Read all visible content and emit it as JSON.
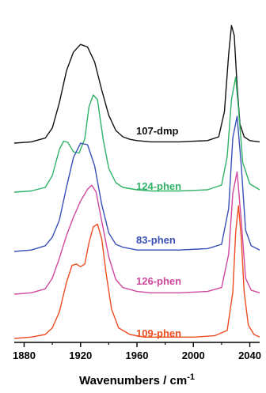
{
  "chart_data": {
    "type": "line",
    "title": "",
    "xlabel": "Wavenumbers / cm",
    "xlabel_superscript": "-1",
    "ylabel": "",
    "xlim": [
      1873,
      2047
    ],
    "xticks": [
      1880,
      1920,
      1960,
      2000,
      2040
    ],
    "y_axis_shown": false,
    "grid": false,
    "colors": {
      "107-dmp": "#111111",
      "124-phen": "#2fb266",
      "83-phen": "#3a4fb8",
      "126-phen": "#d0479e",
      "109-phen": "#ee4d21"
    },
    "series": [
      {
        "name": "107-dmp",
        "x": [
          1873,
          1885,
          1895,
          1900,
          1905,
          1910,
          1915,
          1920,
          1925,
          1930,
          1935,
          1940,
          1945,
          1950,
          1955,
          1960,
          1970,
          1980,
          1990,
          2000,
          2010,
          2018,
          2022,
          2025,
          2027,
          2029,
          2031,
          2033,
          2036,
          2040,
          2047
        ],
        "y": [
          0.0,
          0.01,
          0.04,
          0.12,
          0.32,
          0.57,
          0.72,
          0.78,
          0.76,
          0.64,
          0.42,
          0.22,
          0.1,
          0.05,
          0.03,
          0.02,
          0.01,
          0.01,
          0.01,
          0.015,
          0.02,
          0.05,
          0.25,
          0.7,
          0.93,
          0.85,
          0.45,
          0.15,
          0.05,
          0.02,
          0.01
        ]
      },
      {
        "name": "124-phen",
        "x": [
          1873,
          1885,
          1895,
          1900,
          1905,
          1908,
          1911,
          1915,
          1919,
          1923,
          1926,
          1929,
          1932,
          1936,
          1940,
          1945,
          1950,
          1960,
          1970,
          1990,
          2010,
          2020,
          2024,
          2027,
          2030,
          2032,
          2035,
          2040,
          2047
        ],
        "y": [
          0.0,
          0.01,
          0.04,
          0.14,
          0.36,
          0.43,
          0.42,
          0.34,
          0.33,
          0.45,
          0.72,
          0.82,
          0.78,
          0.45,
          0.2,
          0.08,
          0.04,
          0.02,
          0.01,
          0.01,
          0.02,
          0.06,
          0.3,
          0.78,
          0.97,
          0.7,
          0.25,
          0.07,
          0.02
        ]
      },
      {
        "name": "83-phen",
        "x": [
          1873,
          1885,
          1895,
          1900,
          1905,
          1910,
          1915,
          1920,
          1925,
          1930,
          1935,
          1940,
          1945,
          1950,
          1960,
          1970,
          1990,
          2010,
          2020,
          2025,
          2028,
          2031,
          2034,
          2037,
          2041,
          2047
        ],
        "y": [
          0.0,
          0.01,
          0.04,
          0.1,
          0.22,
          0.45,
          0.66,
          0.76,
          0.75,
          0.6,
          0.33,
          0.13,
          0.05,
          0.03,
          0.01,
          0.01,
          0.01,
          0.02,
          0.05,
          0.3,
          0.8,
          0.95,
          0.6,
          0.15,
          0.04,
          0.01
        ]
      },
      {
        "name": "126-phen",
        "x": [
          1873,
          1885,
          1895,
          1900,
          1905,
          1910,
          1915,
          1920,
          1925,
          1928,
          1931,
          1935,
          1940,
          1945,
          1950,
          1960,
          1970,
          1990,
          2010,
          2020,
          2025,
          2028,
          2031,
          2034,
          2037,
          2041,
          2047
        ],
        "y": [
          0.0,
          0.01,
          0.04,
          0.12,
          0.27,
          0.44,
          0.58,
          0.7,
          0.79,
          0.82,
          0.77,
          0.55,
          0.28,
          0.11,
          0.05,
          0.02,
          0.01,
          0.01,
          0.02,
          0.05,
          0.3,
          0.76,
          0.92,
          0.55,
          0.12,
          0.03,
          0.01
        ]
      },
      {
        "name": "109-phen",
        "x": [
          1873,
          1885,
          1895,
          1900,
          1905,
          1910,
          1914,
          1917,
          1920,
          1923,
          1926,
          1929,
          1932,
          1935,
          1938,
          1942,
          1947,
          1955,
          1965,
          1980,
          2000,
          2015,
          2024,
          2028,
          2030,
          2032,
          2034,
          2036,
          2039,
          2043,
          2047
        ],
        "y": [
          0.0,
          0.01,
          0.03,
          0.08,
          0.2,
          0.42,
          0.55,
          0.56,
          0.54,
          0.56,
          0.72,
          0.84,
          0.86,
          0.75,
          0.5,
          0.22,
          0.08,
          0.03,
          0.01,
          0.01,
          0.01,
          0.02,
          0.06,
          0.35,
          0.8,
          1.0,
          0.75,
          0.35,
          0.1,
          0.03,
          0.01
        ]
      }
    ],
    "series_labels": [
      "107-dmp",
      "124-phen",
      "83-phen",
      "126-phen",
      "109-phen"
    ]
  }
}
